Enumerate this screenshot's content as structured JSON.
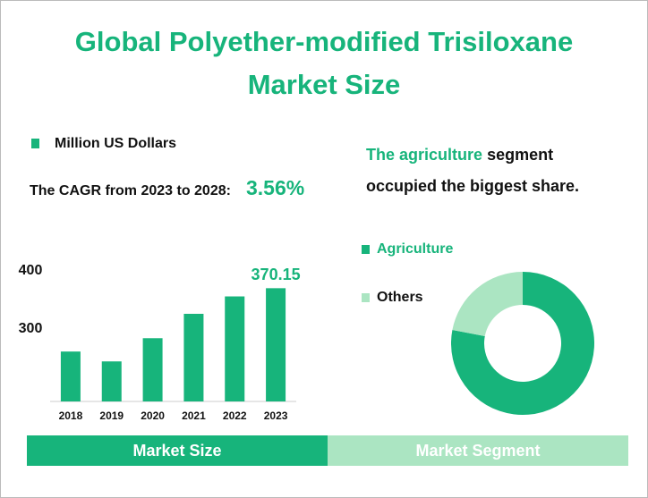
{
  "header": {
    "title_line1": "Global Polyether-modified Trisiloxane",
    "title_line2": "Market Size"
  },
  "cagr": {
    "text": "The CAGR from 2023 to 2028:",
    "value": "3.56%"
  },
  "insight": {
    "part1": "The",
    "highlight": "agriculture",
    "part2": "segment",
    "line2": "occupied the biggest share."
  },
  "tabs": {
    "left": "Market Size",
    "right": "Market Segment"
  },
  "chart_data": [
    {
      "type": "bar",
      "categories": [
        "2018",
        "2019",
        "2020",
        "2021",
        "2022",
        "2023"
      ],
      "series": [
        {
          "name": "Million US Dollars",
          "color": "#17b47b",
          "values": [
            261,
            244,
            284,
            326,
            356,
            370.15
          ],
          "value_labels": [
            null,
            null,
            null,
            null,
            null,
            "370.15"
          ]
        }
      ],
      "ylim": [
        175,
        420
      ],
      "yticks": [
        300,
        400
      ]
    },
    {
      "type": "pie",
      "donut": true,
      "categories": [
        "Agriculture",
        "Others"
      ],
      "values": [
        78,
        22
      ],
      "colors": [
        "#17b47b",
        "#abe5c2"
      ]
    }
  ]
}
